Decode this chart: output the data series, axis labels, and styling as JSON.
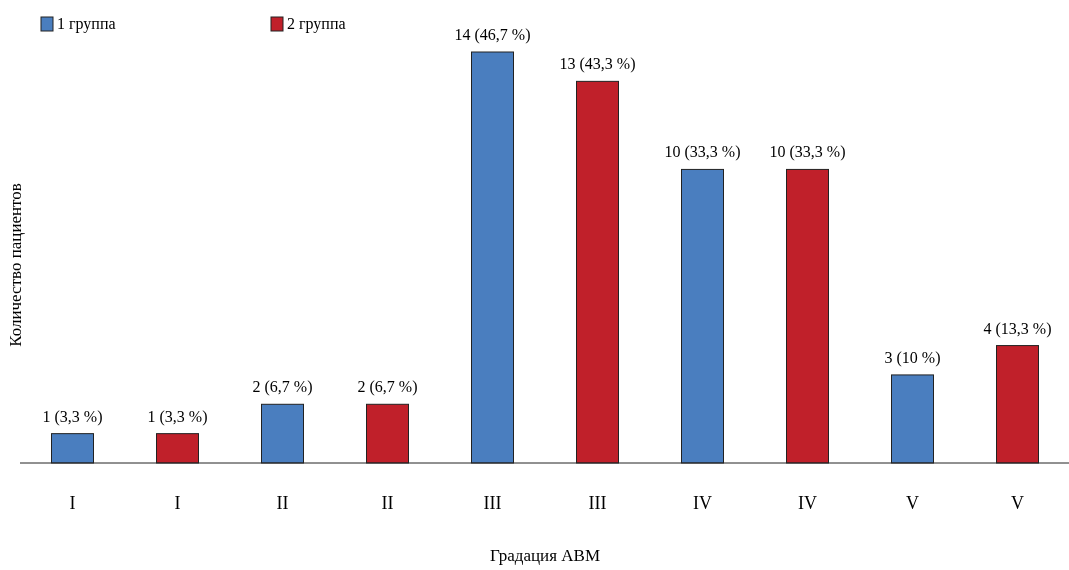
{
  "chart_data": {
    "type": "bar",
    "xlabel": "Градация АВМ",
    "ylabel": "Количество пациентов",
    "categories": [
      "I",
      "I",
      "II",
      "II",
      "III",
      "III",
      "IV",
      "IV",
      "V",
      "V"
    ],
    "series": [
      {
        "name": "1 группа",
        "color": "#4a7ebf",
        "values": [
          1,
          null,
          2,
          null,
          14,
          null,
          10,
          null,
          3,
          null
        ],
        "value_labels": [
          "1 (3,3 %)",
          null,
          "2 (6,7 %)",
          null,
          "14 (46,7 %)",
          null,
          "10 (33,3 %)",
          null,
          "3 (10 %)",
          null
        ]
      },
      {
        "name": "2 группа",
        "color": "#c0202a",
        "values": [
          null,
          1,
          null,
          2,
          null,
          13,
          null,
          10,
          null,
          4
        ],
        "value_labels": [
          null,
          "1 (3,3 %)",
          null,
          "2 (6,7 %)",
          null,
          "13 (43,3 %)",
          null,
          "10 (33,3 %)",
          null,
          "4 (13,3 %)"
        ]
      }
    ],
    "legend": "top left"
  }
}
